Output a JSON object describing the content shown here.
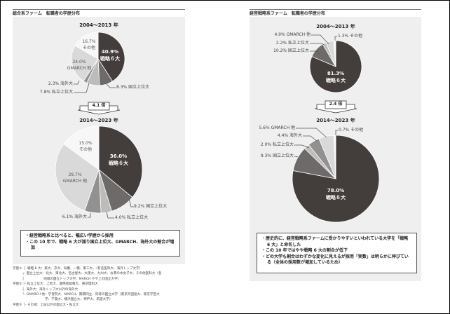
{
  "left": {
    "title": "総合系ファーム　転職者の学歴分布",
    "period1": "2004〜2013 年",
    "period2": "2014〜2023 年",
    "growth": "4.1 倍",
    "notes": [
      "・経営戦略系と比べると、幅広い学歴から採用",
      "・この 10 年で、戦略 6 大が減り国立上位大、GMARCH、海外大の割合が増加"
    ],
    "legend": [
      "学歴①［- 戦略 6 大：東大、京大、早慶、一橋、東工大、（有名医科大、海外トップ大学）",
      "　　　┌- 国立上位大：北大、東北大、名古屋大、大阪大、九州大、お茶の水女子大、その他医科大（各",
      "　　　│　　　　　　地域の国立トップ大学、MARCH やや上の国立大学）",
      "学歴② │- 私立上位大：上智大、国際基督教大、東京理科大",
      "　　　│- 海外大：海外トップ大以外の海外大",
      "　　　└- GMARCH 他：学習院大、MARCH、関関同立、同等の国立大学（東京外国語大、東京学芸大",
      "　　　　　　　　　　学、千葉大、横浜国立大、神戸大、筑波大学）",
      "学歴③［- その他：上記以外の国立大・私立大"
    ]
  },
  "right": {
    "title": "経営戦略系ファーム　転職者の学歴分布",
    "period1": "2004〜2013 年",
    "period2": "2014〜2023 年",
    "growth": "2.4 倍",
    "notes": [
      "・歴史的に、経営戦略系ファームに受かりやすいといわれている大学を「戦略 6 大」と命名した",
      "・この 10 年ではやや戦略 6 大の割合が低下",
      "・どの大学も割合はわずかな変化に見えるが採用「実数」は明らかに伸びている（全体の採用数が増加しているため）"
    ]
  },
  "colors": {
    "戦略6大": "#433e3c",
    "国立上位大": "#6d6a69",
    "私立上位大": "#bdbcbb",
    "海外大": "#929090",
    "GMARCH他": "#d9d9d9",
    "その他": "#f7f7f7"
  },
  "chart_data": [
    {
      "type": "pie",
      "title": "2004〜2013 年",
      "group": "総合系ファーム",
      "categories": [
        "戦略6大",
        "国立上位大",
        "私立上位大",
        "海外大",
        "GMARCH他",
        "その他"
      ],
      "values": [
        40.9,
        8.3,
        7.8,
        2.3,
        24.0,
        16.7
      ],
      "labels": [
        "40.9%",
        "8.3% 国立上位大",
        "7.8% 私立上位大",
        "2.3% 海外大",
        "24.0%",
        "16.7%"
      ],
      "sublabels": {
        "戦略6大": "戦略６大",
        "GMARCH他": "GMARCH 他",
        "その他": "その他"
      }
    },
    {
      "type": "pie",
      "title": "2014〜2023 年",
      "group": "総合系ファーム",
      "categories": [
        "戦略6大",
        "国立上位大",
        "私立上位大",
        "海外大",
        "GMARCH他",
        "その他"
      ],
      "values": [
        36.0,
        9.2,
        4.0,
        6.1,
        29.7,
        15.0
      ],
      "labels": [
        "36.0%",
        "9.2% 国立上位大",
        "4.0% 私立上位大",
        "6.1% 海外大",
        "29.7%",
        "15.0%"
      ],
      "sublabels": {
        "戦略6大": "戦略６大",
        "GMARCH他": "GMARCH 他",
        "その他": "その他"
      }
    },
    {
      "type": "pie",
      "title": "2004〜2013 年",
      "group": "経営戦略系ファーム",
      "categories": [
        "戦略6大",
        "国立上位大",
        "私立上位大",
        "GMARCH他",
        "その他"
      ],
      "values": [
        81.3,
        10.2,
        2.2,
        4.9,
        1.3
      ],
      "labels": [
        "81.3%",
        "10.2% 国立上位大",
        "2.2% 私立上位大",
        "4.9% GMARCH 他",
        "1.3% その他"
      ],
      "sublabels": {
        "戦略6大": "戦略６大"
      }
    },
    {
      "type": "pie",
      "title": "2014〜2023 年",
      "group": "経営戦略系ファーム",
      "categories": [
        "戦略6大",
        "国立上位大",
        "私立上位大",
        "海外大",
        "GMARCH他",
        "その他"
      ],
      "values": [
        78.0,
        9.3,
        2.0,
        4.4,
        5.6,
        0.7
      ],
      "labels": [
        "78.0%",
        "9.3% 国立上位大",
        "2.0% 私立上位大",
        "4.4% 海外大",
        "5.6% GMARCH 他",
        "0.7% その他"
      ],
      "sublabels": {
        "戦略6大": "戦略６大"
      }
    }
  ]
}
